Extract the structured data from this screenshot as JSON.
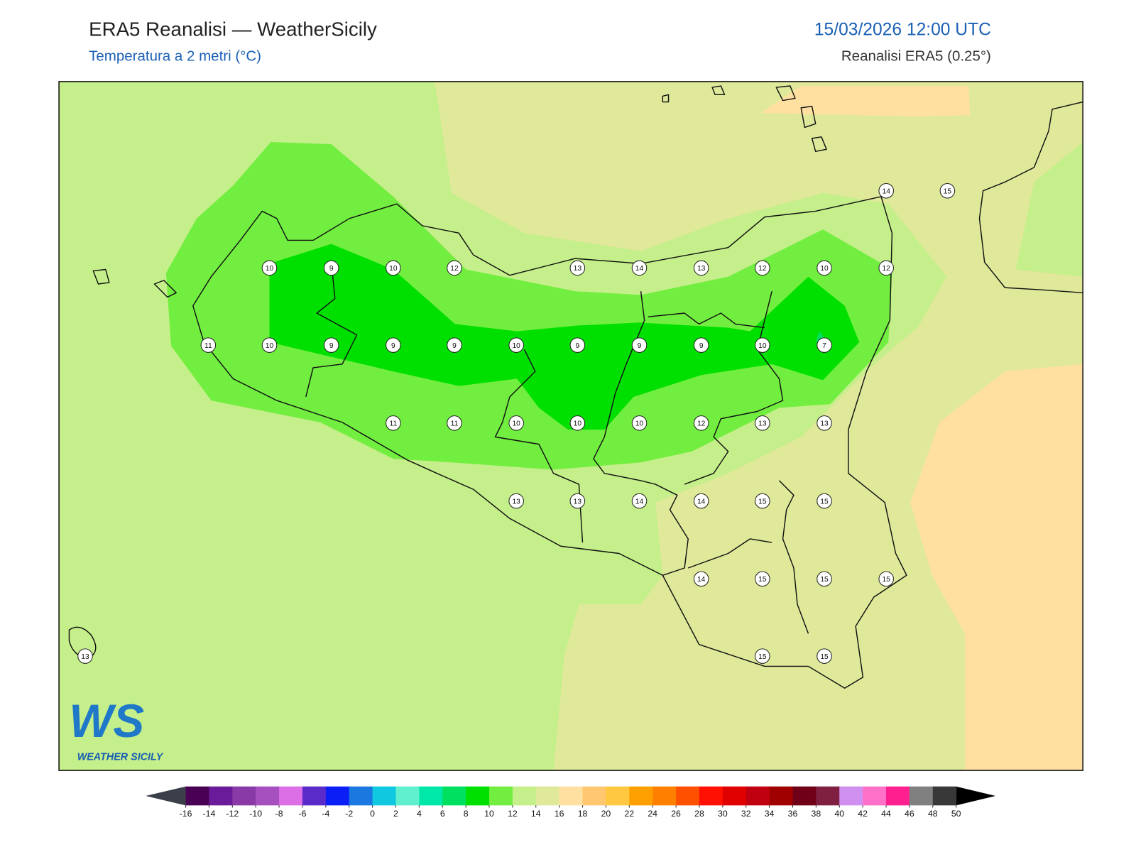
{
  "header": {
    "title": "ERA5 Reanalisi — WeatherSicily",
    "subtitle": "Temperatura a 2 metri (°C)",
    "datetime": "15/03/2026 12:00 UTC",
    "source": "Reanalisi ERA5 (0.25°)"
  },
  "stations": [
    10,
    9,
    10,
    12,
    13,
    14,
    13,
    12,
    10,
    12,
    14,
    15,
    11,
    10,
    9,
    9,
    9,
    10,
    9,
    9,
    9,
    10,
    7,
    11,
    11,
    10,
    10,
    10,
    12,
    13,
    13,
    13,
    13,
    14,
    14,
    15,
    15,
    14,
    15,
    15,
    15,
    13,
    15,
    15
  ],
  "colorbar": {
    "ticks": [
      -16,
      -14,
      -12,
      -10,
      -8,
      -6,
      -4,
      -2,
      0,
      2,
      4,
      6,
      8,
      10,
      12,
      14,
      16,
      18,
      20,
      22,
      24,
      26,
      28,
      30,
      32,
      34,
      36,
      38,
      40,
      42,
      44,
      46,
      48,
      50
    ],
    "colors": [
      "#4a0055",
      "#6a1b9a",
      "#8a3aa6",
      "#a64fbe",
      "#dc6ee6",
      "#5a2bc8",
      "#0a1ef5",
      "#1a78e0",
      "#10c8e0",
      "#60f0d0",
      "#00e8a8",
      "#00e060",
      "#00e000",
      "#72ee40",
      "#c5ef8a",
      "#e0e89a",
      "#ffe0a0",
      "#ffc870",
      "#ffc840",
      "#ffa000",
      "#ff8000",
      "#ff5000",
      "#ff1000",
      "#e00000",
      "#c00010",
      "#a00000",
      "#700018",
      "#802040",
      "#d090f0",
      "#ff70c8",
      "#ff2090",
      "#808080",
      "#383838"
    ],
    "under_color": "#3a3f4a",
    "over_color": "#000000"
  },
  "logo": {
    "mark": "WS",
    "name": "WEATHER SICILY"
  }
}
